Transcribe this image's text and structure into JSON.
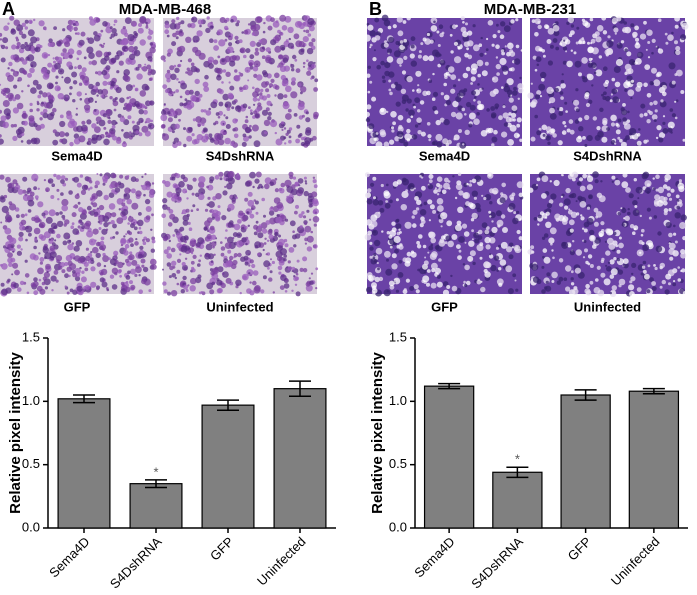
{
  "chart_data": [
    {
      "type": "bar",
      "panel": "A",
      "title": "MDA-MB-468",
      "image_captions": [
        "Sema4D",
        "S4DshRNA",
        "GFP",
        "Uninfected"
      ],
      "categories": [
        "Sema4D",
        "S4DshRNA",
        "GFP",
        "Uninfected"
      ],
      "values": [
        1.02,
        0.35,
        0.97,
        1.1
      ],
      "errors": [
        0.03,
        0.03,
        0.04,
        0.06
      ],
      "significance": [
        null,
        "*",
        null,
        null
      ],
      "ylabel": "Relative pixel intensity",
      "ylim": [
        0,
        1.5
      ],
      "yticks": [
        {
          "value": 0,
          "label": "0.0"
        },
        {
          "value": 0.5,
          "label": "0.5"
        },
        {
          "value": 1,
          "label": "1.0"
        },
        {
          "value": 1.5,
          "label": "1.5"
        }
      ],
      "color": "#808080"
    },
    {
      "type": "bar",
      "panel": "B",
      "title": "MDA-MB-231",
      "image_captions": [
        "Sema4D",
        "S4DshRNA",
        "GFP",
        "Uninfected"
      ],
      "categories": [
        "Sema4D",
        "S4DshRNA",
        "GFP",
        "Uninfected"
      ],
      "values": [
        1.12,
        0.44,
        1.05,
        1.08
      ],
      "errors": [
        0.02,
        0.04,
        0.04,
        0.02
      ],
      "significance": [
        null,
        "*",
        null,
        null
      ],
      "ylabel": "Relative pixel intensity",
      "ylim": [
        0,
        1.5
      ],
      "yticks": [
        {
          "value": 0,
          "label": "0.0"
        },
        {
          "value": 0.5,
          "label": "0.5"
        },
        {
          "value": 1,
          "label": "1.0"
        },
        {
          "value": 1.5,
          "label": "1.5"
        }
      ],
      "color": "#808080"
    }
  ]
}
